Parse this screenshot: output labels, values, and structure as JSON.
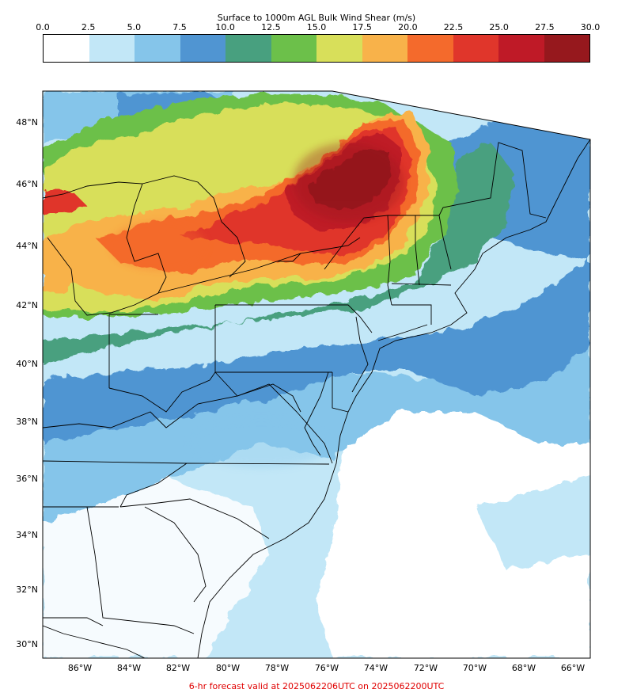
{
  "colorbar": {
    "title": "Surface to 1000m AGL Bulk Wind Shear (m/s)",
    "ticks": [
      "0.0",
      "2.5",
      "5.0",
      "7.5",
      "10.0",
      "12.5",
      "15.0",
      "17.5",
      "20.0",
      "22.5",
      "25.0",
      "27.5",
      "30.0"
    ],
    "colors": [
      "#ffffff",
      "#c2e7f7",
      "#85c5ea",
      "#5095d2",
      "#48a07f",
      "#6cc04a",
      "#d8df5a",
      "#f8b24a",
      "#f46a2c",
      "#e0362b",
      "#bf1a27",
      "#96181d"
    ]
  },
  "map": {
    "lat_labels": [
      "48°N",
      "46°N",
      "44°N",
      "42°N",
      "40°N",
      "38°N",
      "36°N",
      "34°N",
      "32°N",
      "30°N"
    ],
    "lon_labels": [
      "86°W",
      "84°W",
      "82°W",
      "80°W",
      "78°W",
      "76°W",
      "74°W",
      "72°W",
      "70°W",
      "68°W",
      "66°W"
    ]
  },
  "footer": {
    "text": "6-hr forecast valid at 2025062206UTC on 2025062200UTC"
  }
}
